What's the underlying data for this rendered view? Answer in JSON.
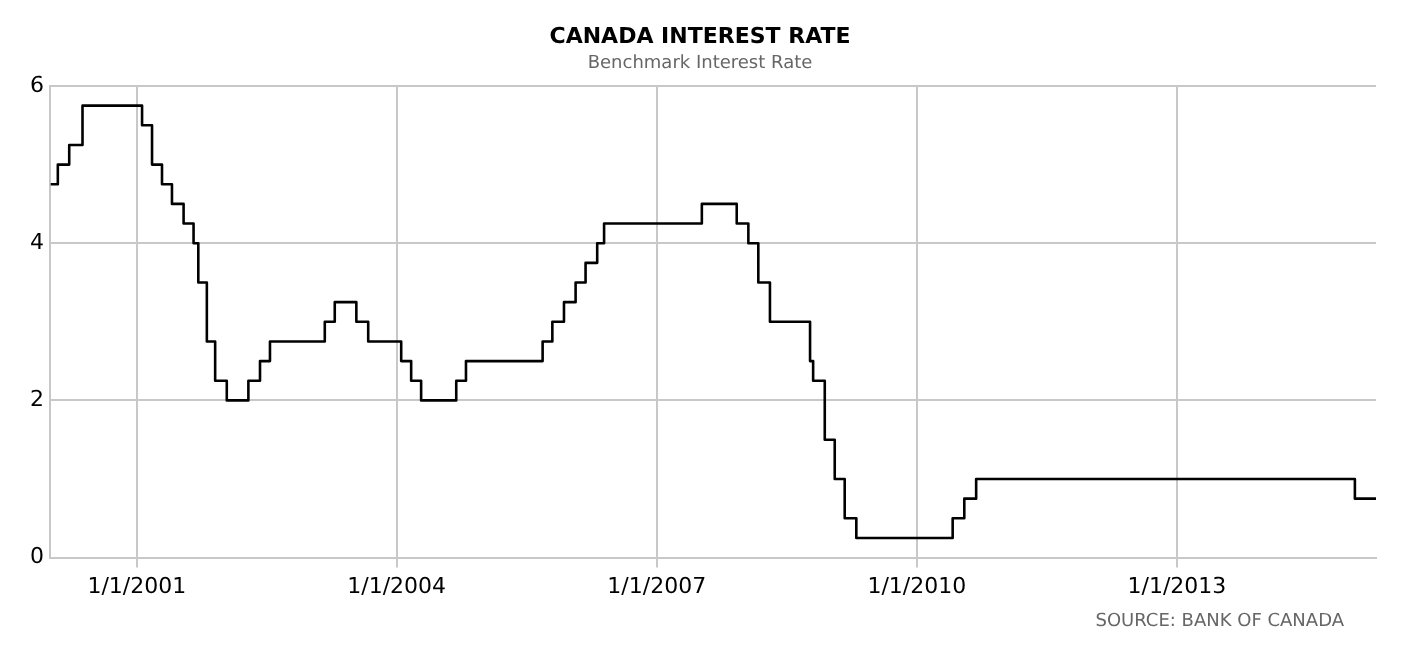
{
  "chart_data": {
    "type": "step",
    "title": "CANADA INTEREST RATE",
    "subtitle": "Benchmark Interest Rate",
    "annotations": [
      "SOURCE: BANK OF CANADA"
    ],
    "x": [
      "2000-01-04",
      "2000-02-03",
      "2000-03-22",
      "2000-05-17",
      "2001-01-23",
      "2001-03-06",
      "2001-04-17",
      "2001-05-29",
      "2001-07-17",
      "2001-08-28",
      "2001-09-17",
      "2001-10-23",
      "2001-11-27",
      "2002-01-15",
      "2002-04-16",
      "2002-06-04",
      "2002-07-16",
      "2003-03-04",
      "2003-04-15",
      "2003-07-15",
      "2003-09-03",
      "2004-01-20",
      "2004-03-02",
      "2004-04-13",
      "2004-09-08",
      "2004-10-19",
      "2005-09-07",
      "2005-10-18",
      "2005-12-06",
      "2006-01-24",
      "2006-03-07",
      "2006-04-25",
      "2006-05-24",
      "2007-07-10",
      "2007-12-04",
      "2008-01-22",
      "2008-03-04",
      "2008-04-22",
      "2008-10-08",
      "2008-10-21",
      "2008-12-09",
      "2009-01-20",
      "2009-03-03",
      "2009-04-21",
      "2010-06-01",
      "2010-07-20",
      "2010-09-08",
      "2015-01-21",
      "2015-04-20"
    ],
    "series": [
      {
        "color": "#000000",
        "values": [
          4.75,
          5.0,
          5.25,
          5.75,
          5.5,
          5.0,
          4.75,
          4.5,
          4.25,
          4.0,
          3.5,
          2.75,
          2.25,
          2.0,
          2.25,
          2.5,
          2.75,
          3.0,
          3.25,
          3.0,
          2.75,
          2.5,
          2.25,
          2.0,
          2.25,
          2.5,
          2.75,
          3.0,
          3.25,
          3.5,
          3.75,
          4.0,
          4.25,
          4.5,
          4.25,
          4.0,
          3.5,
          3.0,
          2.5,
          2.25,
          1.5,
          1.0,
          0.5,
          0.25,
          0.5,
          0.75,
          1.0,
          0.75,
          0.75
        ]
      }
    ],
    "xlim": [
      "2000-01-01",
      "2015-04-20"
    ],
    "xticks": [
      {
        "value": "2001-01-01",
        "label": "1/1/2001"
      },
      {
        "value": "2004-01-01",
        "label": "1/1/2004"
      },
      {
        "value": "2007-01-01",
        "label": "1/1/2007"
      },
      {
        "value": "2010-01-01",
        "label": "1/1/2010"
      },
      {
        "value": "2013-01-01",
        "label": "1/1/2013"
      }
    ],
    "ylim": [
      0,
      6
    ],
    "yticks": [
      0,
      2,
      4,
      6
    ],
    "grid": true,
    "legend": false,
    "marker": "none",
    "line_style": "solid"
  }
}
